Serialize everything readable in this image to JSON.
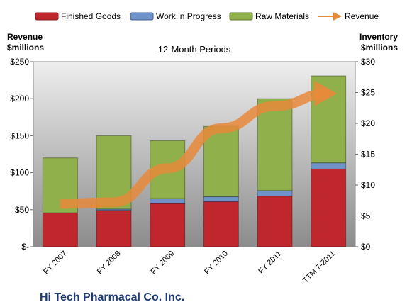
{
  "chart_data": {
    "type": "bar",
    "stacked": true,
    "title": "12-Month Periods",
    "footer_title": "Hi Tech Pharmacal Co. Inc.",
    "categories": [
      "FY 2007",
      "FY 2008",
      "FY 2009",
      "FY 2010",
      "FY 2011",
      "TTM 7-2011"
    ],
    "left_axis": {
      "label_line1": "Revenue",
      "label_line2": "$millions",
      "ylim": [
        0,
        250
      ],
      "ticks": [
        {
          "value": 0,
          "label": "$-"
        },
        {
          "value": 50,
          "label": "$50"
        },
        {
          "value": 100,
          "label": "$100"
        },
        {
          "value": 150,
          "label": "$150"
        },
        {
          "value": 200,
          "label": "$200"
        },
        {
          "value": 250,
          "label": "$250"
        }
      ]
    },
    "right_axis": {
      "label_line1": "Inventory",
      "label_line2": "$millions",
      "ylim": [
        0,
        30
      ],
      "ticks": [
        {
          "value": 0,
          "label": "$0"
        },
        {
          "value": 5,
          "label": "$5"
        },
        {
          "value": 10,
          "label": "$10"
        },
        {
          "value": 15,
          "label": "$15"
        },
        {
          "value": 20,
          "label": "$20"
        },
        {
          "value": 25,
          "label": "$25"
        },
        {
          "value": 30,
          "label": "$30"
        }
      ]
    },
    "series": [
      {
        "name": "Finished Goods",
        "kind": "bar",
        "axis": "right",
        "color": "#c0272d",
        "values": [
          5.5,
          5.9,
          7.0,
          7.3,
          8.2,
          12.6
        ]
      },
      {
        "name": "Work in Progress",
        "kind": "bar",
        "axis": "right",
        "color": "#6f93c9",
        "values": [
          0.0,
          0.2,
          0.8,
          0.8,
          0.9,
          1.0
        ]
      },
      {
        "name": "Raw Materials",
        "kind": "bar",
        "axis": "right",
        "color": "#8fb04a",
        "values": [
          8.9,
          11.9,
          9.4,
          11.4,
          14.9,
          14.1
        ]
      },
      {
        "name": "Revenue",
        "kind": "line",
        "axis": "left",
        "color": "#e8893a",
        "values": [
          58,
          60,
          106,
          160,
          190,
          207
        ]
      }
    ],
    "legend_position": "top",
    "grid": false
  }
}
